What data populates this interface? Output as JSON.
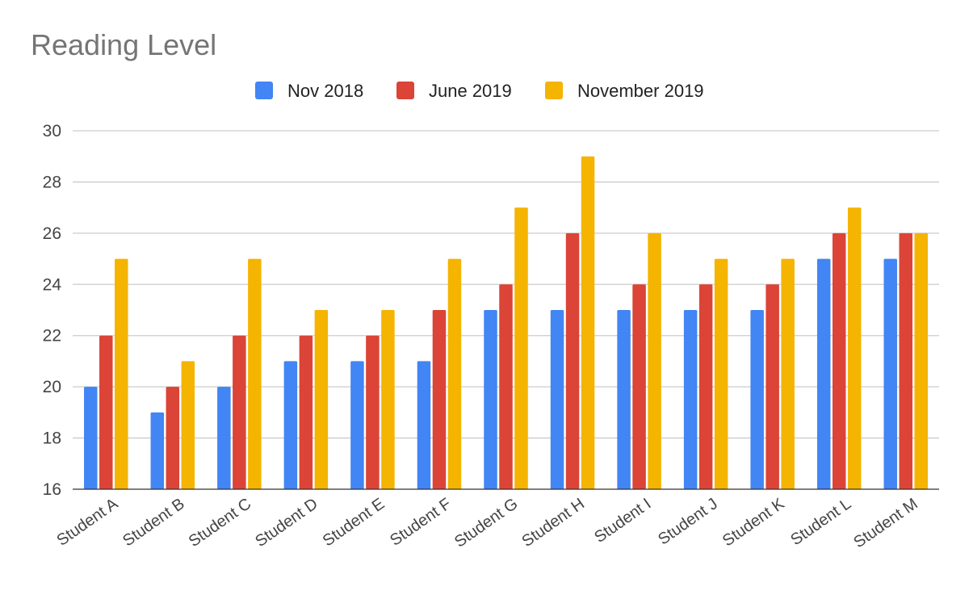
{
  "chart_data": {
    "type": "bar",
    "title": "Reading Level",
    "xlabel": "",
    "ylabel": "",
    "categories": [
      "Student A",
      "Student B",
      "Student C",
      "Student D",
      "Student E",
      "Student F",
      "Student G",
      "Student H",
      "Student I",
      "Student J",
      "Student K",
      "Student L",
      "Student M"
    ],
    "series": [
      {
        "name": "Nov 2018",
        "color": "#4285f4",
        "values": [
          20,
          19,
          20,
          21,
          21,
          21,
          23,
          23,
          23,
          23,
          23,
          25,
          25
        ]
      },
      {
        "name": "June 2019",
        "color": "#db4437",
        "values": [
          22,
          20,
          22,
          22,
          22,
          23,
          24,
          26,
          24,
          24,
          24,
          26,
          26
        ]
      },
      {
        "name": "November 2019",
        "color": "#f4b400",
        "values": [
          25,
          21,
          25,
          23,
          23,
          25,
          27,
          29,
          26,
          25,
          25,
          27,
          26
        ]
      }
    ],
    "ylim": [
      16,
      30
    ],
    "y_ticks": [
      16,
      18,
      20,
      22,
      24,
      26,
      28,
      30
    ],
    "grid": true,
    "legend_position": "top-center"
  }
}
